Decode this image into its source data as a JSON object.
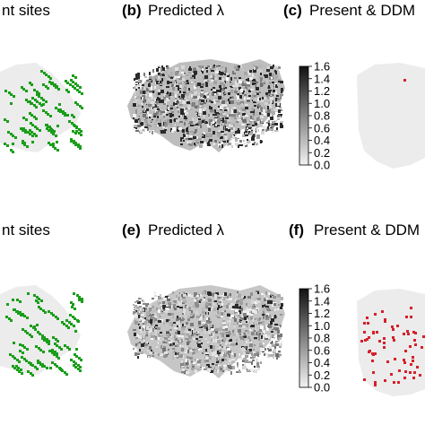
{
  "figure": {
    "panels": [
      {
        "id": "a",
        "letter": "",
        "title": "nt sites"
      },
      {
        "id": "b",
        "letter": "(b)",
        "title": "Predicted λ"
      },
      {
        "id": "c",
        "letter": "(c)",
        "title": "Present & DDM"
      },
      {
        "id": "d",
        "letter": "",
        "title": "nt sites"
      },
      {
        "id": "e",
        "letter": "(e)",
        "title": "Predicted λ"
      },
      {
        "id": "f",
        "letter": "(f)",
        "title": "Present & DDM"
      }
    ],
    "colorbar_ticks": [
      "1.6",
      "1.4",
      "1.2",
      "1.0",
      "0.8",
      "0.6",
      "0.4",
      "0.2",
      "0.0"
    ],
    "colors": {
      "presence_green": "#1a9e1a",
      "present_red": "#d6202a",
      "map_background": "#ececec",
      "terrain_dark": "#2a2a2a"
    }
  }
}
